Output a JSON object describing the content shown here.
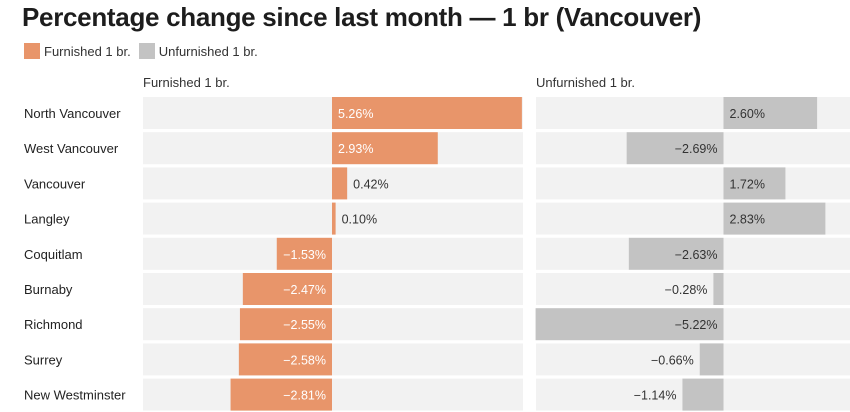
{
  "chart_data": {
    "type": "bar",
    "title": "Percentage change since last month — 1 br (Vancouver)",
    "categories": [
      "North Vancouver",
      "West Vancouver",
      "Vancouver",
      "Langley",
      "Coquitlam",
      "Burnaby",
      "Richmond",
      "Surrey",
      "New Westminster"
    ],
    "series": [
      {
        "name": "Furnished 1 br.",
        "color": "#e8956a",
        "values": [
          5.26,
          2.93,
          0.42,
          0.1,
          -1.53,
          -2.47,
          -2.55,
          -2.58,
          -2.81
        ],
        "labels": [
          "5.26%",
          "2.93%",
          "0.42%",
          "0.10%",
          "−1.53%",
          "−2.47%",
          "−2.55%",
          "−2.58%",
          "−2.81%"
        ]
      },
      {
        "name": "Unfurnished 1 br.",
        "color": "#c3c3c3",
        "values": [
          2.6,
          -2.69,
          1.72,
          2.83,
          -2.63,
          -0.28,
          -5.22,
          -0.66,
          -1.14
        ],
        "labels": [
          "2.60%",
          "−2.69%",
          "1.72%",
          "2.83%",
          "−2.63%",
          "−0.28%",
          "−5.22%",
          "−0.66%",
          "−1.14%"
        ]
      }
    ],
    "panels": [
      "Furnished 1 br.",
      "Unfurnished 1 br."
    ],
    "legend": {
      "placement": "top-left"
    },
    "grid": false
  }
}
